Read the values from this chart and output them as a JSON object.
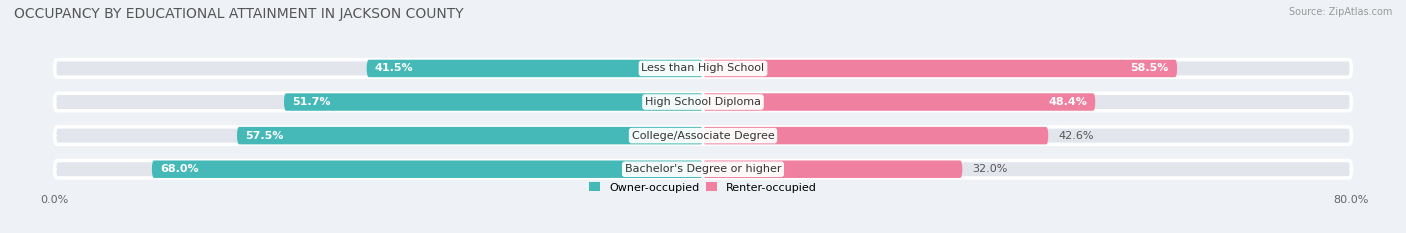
{
  "title": "OCCUPANCY BY EDUCATIONAL ATTAINMENT IN JACKSON COUNTY",
  "source": "Source: ZipAtlas.com",
  "categories": [
    "Less than High School",
    "High School Diploma",
    "College/Associate Degree",
    "Bachelor's Degree or higher"
  ],
  "owner_values": [
    41.5,
    51.7,
    57.5,
    68.0
  ],
  "renter_values": [
    58.5,
    48.4,
    42.6,
    32.0
  ],
  "owner_color": "#45b8b8",
  "renter_color": "#f080a0",
  "background_color": "#eef1f5",
  "bar_background": "#e2e6ec",
  "x_tick_left": "0.0%",
  "x_tick_right": "80.0%",
  "title_fontsize": 10,
  "label_fontsize": 8,
  "value_fontsize": 8,
  "legend_fontsize": 8,
  "renter_value_inside_threshold": 45.0
}
